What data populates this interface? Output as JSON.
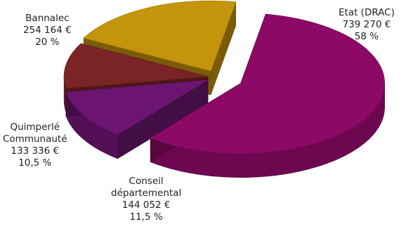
{
  "chart_data": {
    "type": "pie",
    "style": "3d-exploded",
    "slices": [
      {
        "label": "Etat (DRAC)",
        "value_text": "739 270 €",
        "percent_text": "58 %",
        "value": 739270,
        "percent": 58,
        "color": "#8c0a66"
      },
      {
        "label": "Conseil départemental",
        "label_lines": [
          "Conseil",
          "départemental"
        ],
        "value_text": "144 052 €",
        "percent_text": "11,5 %",
        "value": 144052,
        "percent": 11.5,
        "color": "#6c1570"
      },
      {
        "label": "Quimperlé Communauté",
        "label_lines": [
          "Quimperlé",
          "Communauté"
        ],
        "value_text": "133 336 €",
        "percent_text": "10,5 %",
        "value": 133336,
        "percent": 10.5,
        "color": "#7a2426"
      },
      {
        "label": "Bannalec",
        "value_text": "254 164 €",
        "percent_text": "20 %",
        "value": 254164,
        "percent": 20,
        "color": "#c4940c"
      }
    ]
  }
}
